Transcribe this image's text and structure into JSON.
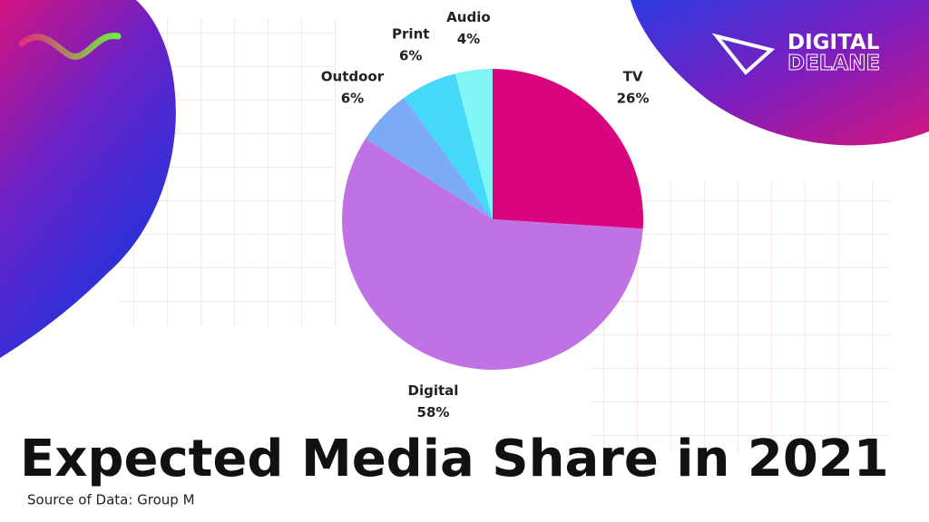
{
  "chart_data": {
    "type": "pie",
    "title": "Expected Media Share in 2021",
    "source": "Source of Data: Group M",
    "categories": [
      "TV",
      "Digital",
      "Outdoor",
      "Print",
      "Audio"
    ],
    "values": [
      26,
      58,
      6,
      6,
      4
    ],
    "value_labels": [
      "26%",
      "58%",
      "6%",
      "6%",
      "4%"
    ],
    "colors": [
      "#d9057f",
      "#c072e4",
      "#7baaf7",
      "#45d8f8",
      "#80f6f6"
    ]
  },
  "logo": {
    "line1": "DIGITAL",
    "line2": "DELANE"
  }
}
